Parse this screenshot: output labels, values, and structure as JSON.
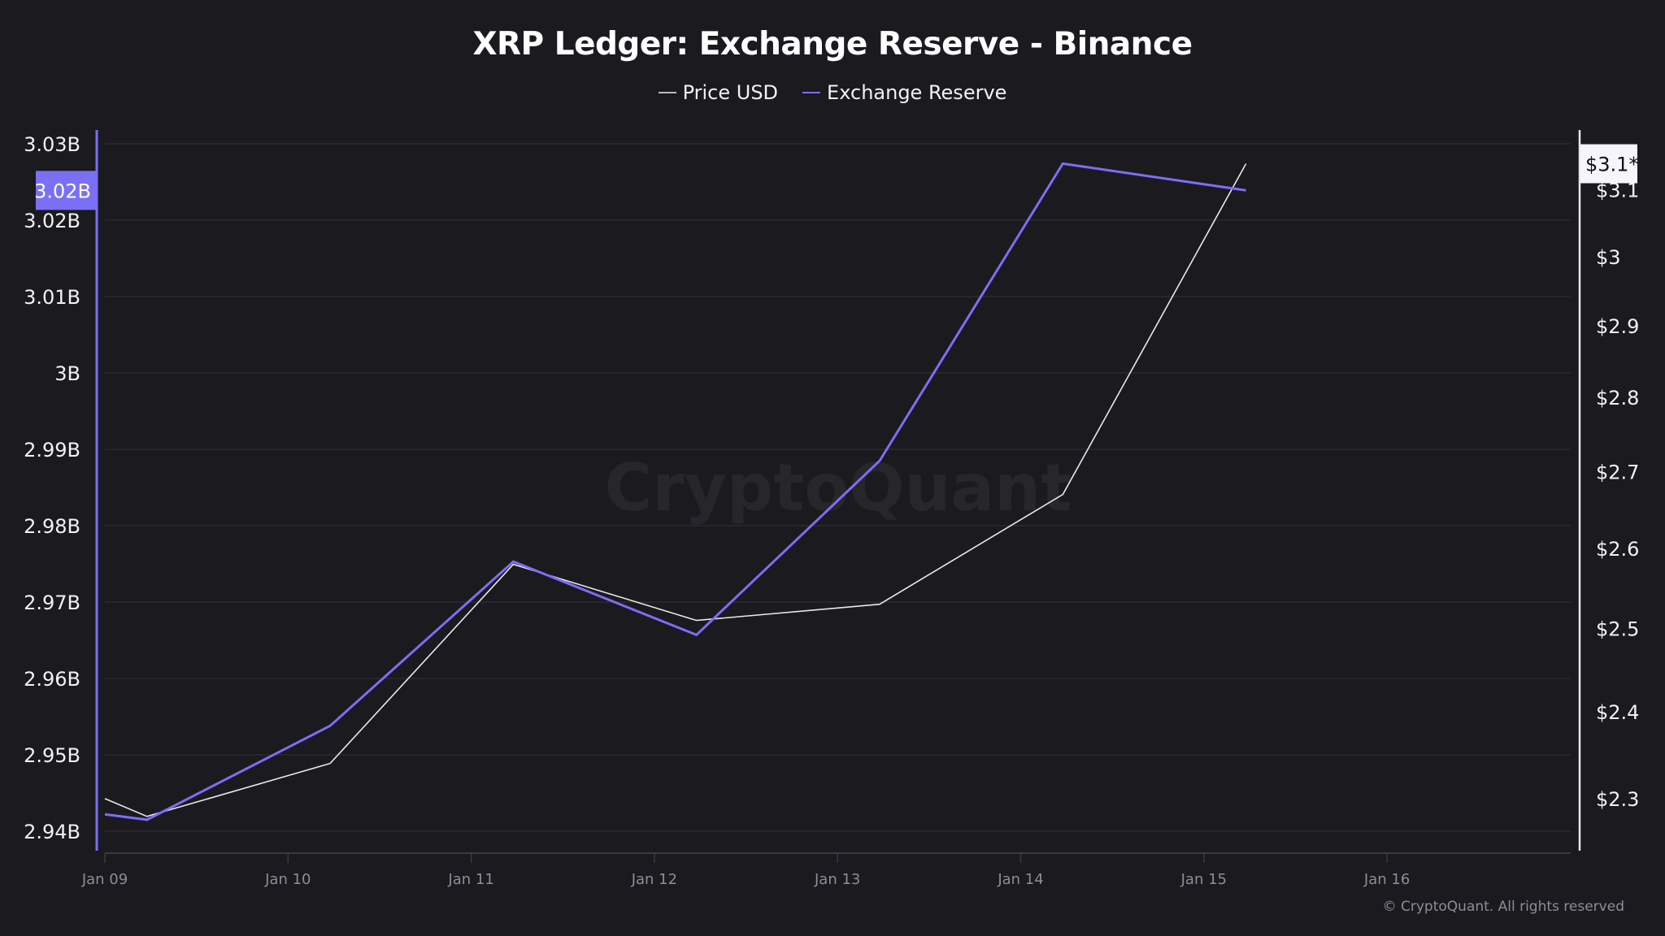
{
  "chart_data": {
    "type": "line",
    "title": "XRP Ledger: Exchange Reserve - Binance",
    "x_unit": "days since Jan 09",
    "x": [
      0,
      0.23,
      1.23,
      2.23,
      3.23,
      4.23,
      5.23,
      6.23
    ],
    "x_ticks": [
      {
        "value": 0,
        "label": "Jan 09"
      },
      {
        "value": 1,
        "label": "Jan 10"
      },
      {
        "value": 2,
        "label": "Jan 11"
      },
      {
        "value": 3,
        "label": "Jan 12"
      },
      {
        "value": 4,
        "label": "Jan 13"
      },
      {
        "value": 5,
        "label": "Jan 14"
      },
      {
        "value": 6,
        "label": "Jan 15"
      },
      {
        "value": 7,
        "label": "Jan 16"
      }
    ],
    "xlim": [
      0,
      8.0
    ],
    "series": [
      {
        "name": "Price USD",
        "axis": "right",
        "color": "#e8e8ec",
        "values": [
          2.3,
          2.28,
          2.34,
          2.58,
          2.51,
          2.53,
          2.67,
          3.14
        ]
      },
      {
        "name": "Exchange Reserve",
        "axis": "left",
        "color": "#7a6ff5",
        "values": [
          2.9422,
          2.9415,
          2.9538,
          2.9753,
          2.9657,
          2.9885,
          3.0274,
          3.0239
        ]
      }
    ],
    "left_axis": {
      "unit": "B",
      "scale": "linear",
      "ylim": [
        2.9357,
        3.0347
      ],
      "ticks": [
        {
          "value": 3.03,
          "label": "3.03B"
        },
        {
          "value": 3.02,
          "label": "3.02B"
        },
        {
          "value": 3.01,
          "label": "3.01B"
        },
        {
          "value": 3.0,
          "label": "3B"
        },
        {
          "value": 2.99,
          "label": "2.99B"
        },
        {
          "value": 2.98,
          "label": "2.98B"
        },
        {
          "value": 2.97,
          "label": "2.97B"
        },
        {
          "value": 2.96,
          "label": "2.96B"
        },
        {
          "value": 2.95,
          "label": "2.95B"
        },
        {
          "value": 2.94,
          "label": "2.94B"
        }
      ],
      "current_label": "3.02B",
      "current_value": 3.0239
    },
    "right_axis": {
      "unit": "$",
      "scale": "log",
      "ylim": [
        2.22,
        3.2
      ],
      "ticks": [
        {
          "value": 3.1,
          "label": "$3.1"
        },
        {
          "value": 3.0,
          "label": "$3"
        },
        {
          "value": 2.9,
          "label": "$2.9"
        },
        {
          "value": 2.8,
          "label": "$2.8"
        },
        {
          "value": 2.7,
          "label": "$2.7"
        },
        {
          "value": 2.6,
          "label": "$2.6"
        },
        {
          "value": 2.5,
          "label": "$2.5"
        },
        {
          "value": 2.4,
          "label": "$2.4"
        },
        {
          "value": 2.3,
          "label": "$2.3"
        }
      ],
      "current_label": "$3.1*",
      "current_value": 3.14
    },
    "legend": {
      "position": "top-center"
    },
    "grid": true,
    "watermark": "CryptoQuant"
  },
  "footer": {
    "copyright": "© CryptoQuant. All rights reserved"
  },
  "colors": {
    "background": "#1b1a1f",
    "grid": "#2a2a30",
    "reserve": "#7a6ff5",
    "price": "#e8e8ec"
  }
}
